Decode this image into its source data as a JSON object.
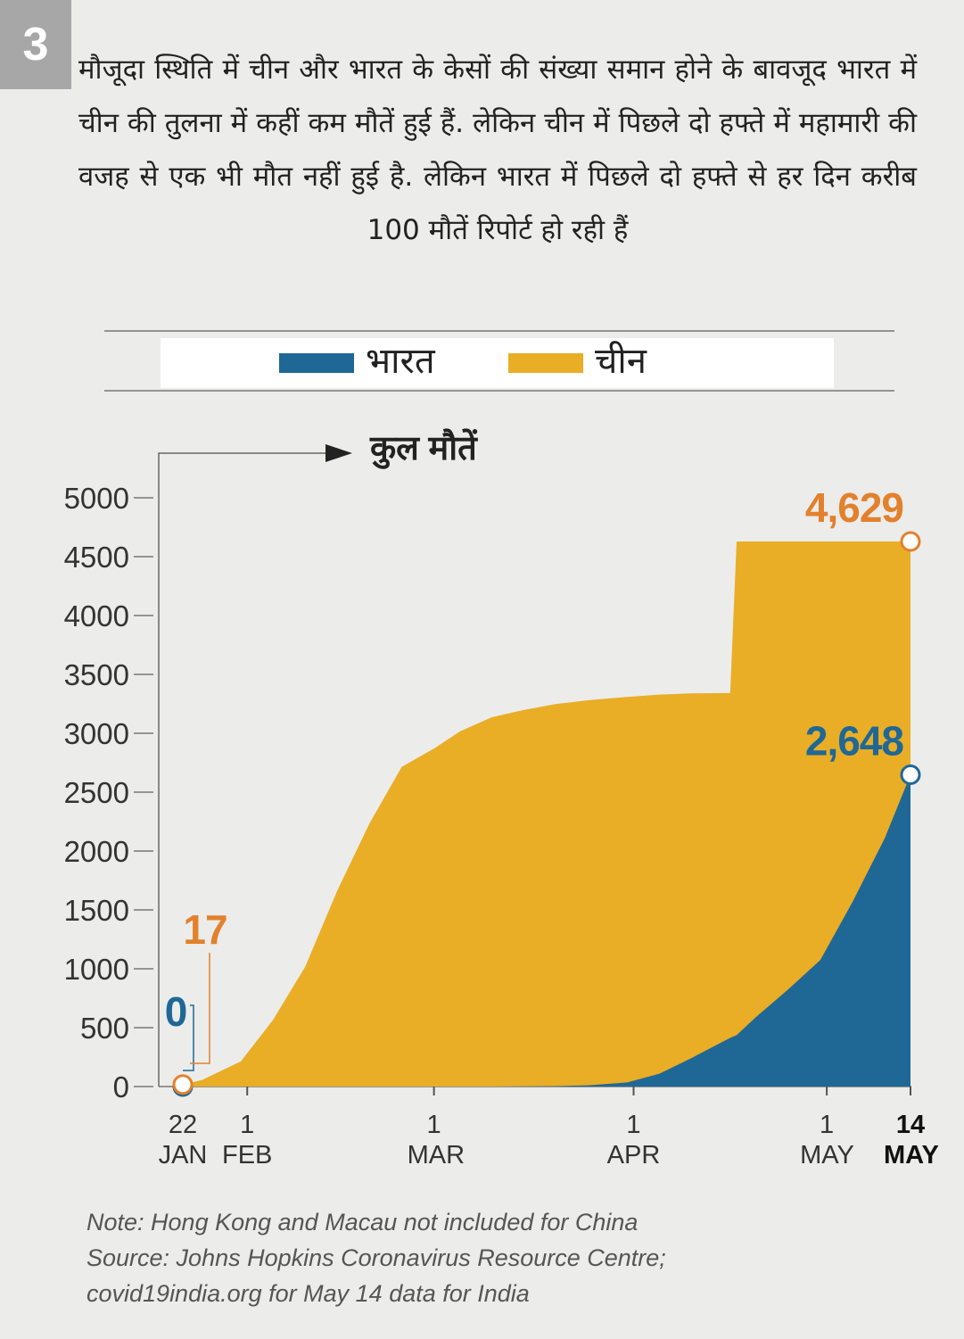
{
  "badge": "3",
  "header": "मौजूदा स्थिति में चीन और भारत के केसों की संख्या समान होने के बावजूद भारत में चीन की तुलना में कहीं कम मौतें हुई हैं. लेकिन चीन में पिछले दो हफ्ते में महामारी की वजह से एक भी मौत नहीं हुई है. लेकिन भारत में पिछले दो हफ्ते से हर दिन करीब 100 मौतें रिपोर्ट हो रही हैं",
  "chart_data": {
    "type": "area",
    "ylabel": "कुल मौतें",
    "legend": "top",
    "x": [
      "01-22",
      "01-25",
      "01-31",
      "02-05",
      "02-10",
      "02-15",
      "02-20",
      "02-25",
      "03-01",
      "03-05",
      "03-10",
      "03-15",
      "03-20",
      "03-25",
      "03-31",
      "04-05",
      "04-10",
      "04-16",
      "04-17",
      "04-20",
      "04-25",
      "04-30",
      "05-05",
      "05-10",
      "05-14"
    ],
    "series": [
      {
        "name": "भारत",
        "color": "#1f6896",
        "label_color": "#1f6896",
        "values": [
          0,
          0,
          0,
          0,
          0,
          0,
          0,
          0,
          0,
          0,
          0,
          2,
          4,
          10,
          35,
          109,
          242,
          414,
          437,
          590,
          825,
          1075,
          1568,
          2109,
          2648
        ],
        "value_labels": [
          "0",
          null,
          null,
          null,
          null,
          null,
          null,
          null,
          null,
          null,
          null,
          null,
          null,
          null,
          null,
          null,
          null,
          null,
          null,
          null,
          null,
          null,
          null,
          null,
          "2,648"
        ]
      },
      {
        "name": "चीन",
        "color": "#e9ae26",
        "label_color": "#e2812c",
        "values": [
          17,
          56,
          213,
          565,
          1017,
          1666,
          2236,
          2715,
          2870,
          3015,
          3136,
          3199,
          3249,
          3281,
          3309,
          3329,
          3339,
          3342,
          4629,
          4629,
          4629,
          4629,
          4629,
          4629,
          4629
        ],
        "value_labels": [
          "17",
          null,
          null,
          null,
          null,
          null,
          null,
          null,
          null,
          null,
          null,
          null,
          null,
          null,
          null,
          null,
          null,
          null,
          null,
          null,
          null,
          null,
          null,
          null,
          "4,629"
        ]
      }
    ],
    "xlim": [
      "01-22",
      "05-14"
    ],
    "xticks": [
      {
        "value": "01-22",
        "label": "22 JAN"
      },
      {
        "value": "02-01",
        "label": "1 FEB"
      },
      {
        "value": "03-01",
        "label": "1 MAR"
      },
      {
        "value": "04-01",
        "label": "1 APR"
      },
      {
        "value": "05-01",
        "label": "1 MAY"
      },
      {
        "value": "05-14",
        "label": "14 MAY"
      }
    ],
    "ylim": [
      0,
      5000
    ],
    "yticks": [
      0,
      500,
      1000,
      1500,
      2000,
      2500,
      3000,
      3500,
      4000,
      4500,
      5000
    ]
  },
  "notes": [
    "Note: Hong Kong and Macau not included for China",
    "Source: Johns Hopkins Coronavirus Resource Centre;",
    "covid19india.org for May 14 data for India"
  ]
}
